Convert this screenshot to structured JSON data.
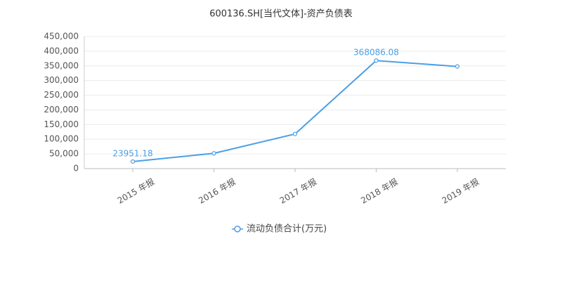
{
  "chart_data": {
    "type": "line",
    "title": "600136.SH[当代文体]-资产负债表",
    "categories": [
      "2015 年报",
      "2016 年报",
      "2017 年报",
      "2018 年报",
      "2019 年报"
    ],
    "series": [
      {
        "name": "流动负债合计(万元)",
        "color": "#4a9fe6",
        "values": [
          23951.18,
          52000,
          118000,
          368086.08,
          348000
        ],
        "value_labels": [
          "23951.18",
          null,
          null,
          "368086.08",
          null
        ]
      }
    ],
    "ylim": [
      0,
      450000
    ],
    "yticks": [
      0,
      {
        "value": 50000,
        "label": "50,000"
      },
      {
        "value": 100000,
        "label": "100,000"
      },
      {
        "value": 150000,
        "label": "150,000"
      },
      {
        "value": 200000,
        "label": "200,000"
      },
      {
        "value": 250000,
        "label": "250,000"
      },
      {
        "value": 300000,
        "label": "300,000"
      },
      {
        "value": 350000,
        "label": "350,000"
      },
      {
        "value": 400000,
        "label": "400,000"
      },
      {
        "value": 450000,
        "label": "450,000"
      }
    ],
    "grid": true,
    "legend": "bottom"
  }
}
